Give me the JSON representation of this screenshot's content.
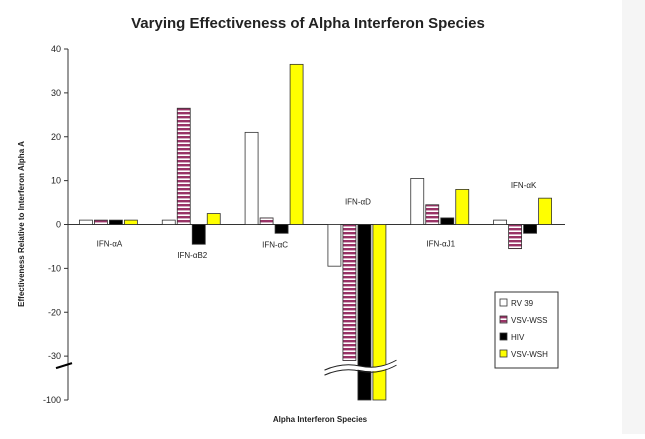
{
  "chart_data": {
    "type": "bar",
    "title": "Varying Effectiveness of Alpha Interferon Species",
    "xlabel": "Alpha Interferon Species",
    "ylabel": "Effectiveness Relative to Interferon Alpha A",
    "categories": [
      "IFN-αA",
      "IFN-αB2",
      "IFN-αC",
      "IFN-αD",
      "IFN-αJ1",
      "IFN-αK"
    ],
    "series": [
      {
        "name": "RV 39",
        "color": "#ffffff",
        "pattern": "solid",
        "values": [
          1,
          1,
          21,
          -9.5,
          10.5,
          1
        ]
      },
      {
        "name": "VSV-WSS",
        "color": "#993366",
        "pattern": "stripes",
        "values": [
          1,
          26.5,
          1.5,
          -37,
          4.5,
          -5.5
        ]
      },
      {
        "name": "HIV",
        "color": "#000000",
        "pattern": "solid",
        "values": [
          1,
          -4.5,
          -2,
          -100,
          1.5,
          -2
        ]
      },
      {
        "name": "VSV-WSH",
        "color": "#ffff00",
        "pattern": "solid",
        "values": [
          1,
          2.5,
          36.5,
          -100,
          8,
          6
        ]
      }
    ],
    "yticks": [
      40,
      30,
      20,
      10,
      0,
      -10,
      -20,
      -30,
      -100
    ],
    "ylim": [
      -100,
      40
    ],
    "axis_break": {
      "between": [
        -30,
        -100
      ]
    },
    "legend_position": "bottom-right",
    "grid": false
  }
}
